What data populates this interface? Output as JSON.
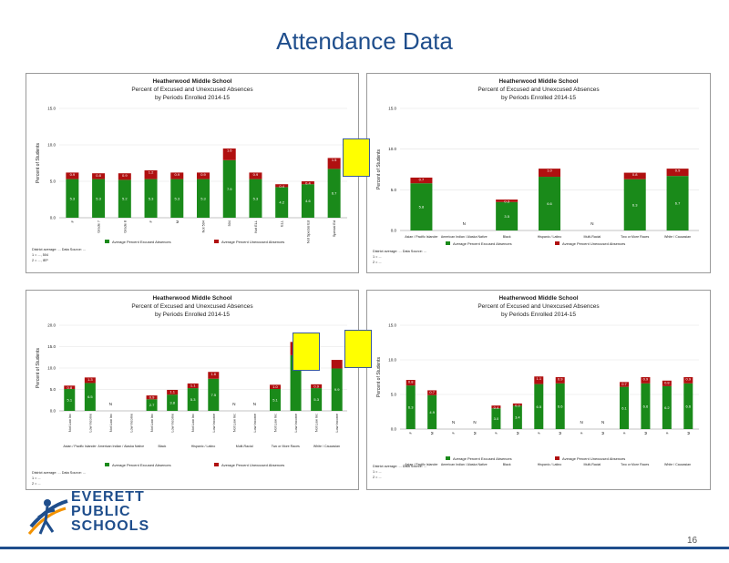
{
  "slide": {
    "title": "Attendance Data",
    "page_number": "16"
  },
  "logo": {
    "line1": "EVERETT",
    "line2": "PUBLIC",
    "line3": "SCHOOLS"
  },
  "colors": {
    "excused": "#1a8a1a",
    "unexcused": "#b01010",
    "title": "#1f4e8c"
  },
  "chart_data": [
    {
      "type": "bar",
      "stacked": true,
      "title": "Heatherwood Middle School",
      "subtitle": "Percent of Excused and Unexcused Absences",
      "subtitle2": "by Periods Enrolled 2014-15",
      "ylabel": "Percent of Students",
      "yticks": [
        "0.0",
        "5.0",
        "10.0",
        "15.0"
      ],
      "ylim": [
        0,
        15
      ],
      "groups": [
        [
          0,
          3
        ],
        [
          4,
          5
        ],
        [
          6,
          7
        ],
        [
          8,
          9
        ],
        [
          10,
          11
        ]
      ],
      "categories": [
        "F",
        "Grade 7",
        "Grade 8",
        "F",
        "M",
        "Not 504",
        "504",
        "Not ELL",
        "ELL",
        "Not Special Ed",
        "Special Ed"
      ],
      "series": [
        {
          "name": "Average Percent Excused Absences",
          "values": [
            5.3,
            5.3,
            5.2,
            5.3,
            5.3,
            5.3,
            7.9,
            5.3,
            4.2,
            4.6,
            6.7
          ]
        },
        {
          "name": "Average Percent Unexcused Absences",
          "values": [
            0.9,
            0.8,
            0.9,
            1.2,
            0.9,
            0.9,
            1.6,
            0.9,
            0.4,
            0.4,
            1.5
          ]
        }
      ],
      "excused_labels": [
        "5.3",
        "5.3",
        "5.2",
        "5.3",
        "5.3",
        "5.3",
        "7.9",
        "5.3",
        "4.2",
        "4.6",
        "6.7"
      ],
      "unexcused_labels": [
        "0.9",
        "0.8",
        "0.9",
        "1.2",
        "0.9",
        "0.9",
        "1.6",
        "0.9",
        "0.4",
        "0.4",
        "1.5"
      ],
      "legend": "bottom",
      "notes": [
        "District average: ... Data Source: ...",
        "1 = ..., 504",
        "2 = ..., IEP"
      ]
    },
    {
      "type": "bar",
      "stacked": true,
      "title": "Heatherwood Middle School",
      "subtitle": "Percent of Excused and Unexcused Absences",
      "subtitle2": "by Periods Enrolled 2014-15",
      "ylabel": "Percent of Students",
      "yticks": [
        "0.0",
        "5.0",
        "10.0",
        "15.0"
      ],
      "ylim": [
        0,
        15
      ],
      "categories": [
        "Asian / Pacific Islander",
        "American Indian / Alaska Native",
        "Black",
        "Hispanic / Latino",
        "Multi-Racial",
        "Two or More Races",
        "White / Caucasian"
      ],
      "series": [
        {
          "name": "Average Percent Excused Absences",
          "values": [
            5.8,
            null,
            3.5,
            6.6,
            null,
            6.3,
            6.7
          ]
        },
        {
          "name": "Average Percent Unexcused Absences",
          "values": [
            0.7,
            null,
            0.3,
            1.0,
            null,
            0.8,
            0.9
          ]
        }
      ],
      "excused_labels": [
        "5.8",
        "",
        "3.5",
        "6.6",
        "",
        "6.3",
        "6.7"
      ],
      "unexcused_labels": [
        "0.7",
        "N",
        "0.3",
        "1.0",
        "N",
        "0.8",
        "0.9"
      ],
      "legend": "bottom",
      "notes": [
        "District average: ... Data Source: ...",
        "1 = ...",
        "2 = ..."
      ]
    },
    {
      "type": "bar",
      "stacked": true,
      "title": "Heatherwood Middle School",
      "subtitle": "Percent of Excused and Unexcused Absences",
      "subtitle2": "by Periods Enrolled 2014-15",
      "ylabel": "Percent of Students",
      "yticks": [
        "0.0",
        "5.0",
        "10.0",
        "15.0",
        "20.0"
      ],
      "ylim": [
        0,
        20
      ],
      "groups": [
        [
          0,
          1
        ],
        [
          2,
          3
        ],
        [
          4,
          5
        ],
        [
          6,
          7
        ],
        [
          8,
          9
        ],
        [
          10,
          11
        ],
        [
          12,
          13
        ]
      ],
      "group_labels": [
        "Asian / Pacific Islander",
        "American Indian / Alaska Native",
        "Black",
        "Hispanic / Latino",
        "Multi-Racial",
        "Two or More Races",
        "White / Caucasian"
      ],
      "categories": [
        "Not Low Inc",
        "Low Income",
        "Not Low Inc",
        "Low Income",
        "Not Low Inc",
        "Low Income",
        "Not Low Inc",
        "Low Income",
        "Not Low Inc",
        "Low Income",
        "Not Low Inc",
        "Low Income",
        "Not Low Inc",
        "Low Income"
      ],
      "series": [
        {
          "name": "Average Percent Excused Absences",
          "values": [
            5.1,
            6.5,
            null,
            null,
            2.7,
            3.8,
            5.3,
            7.5,
            null,
            null,
            5.1,
            13.0,
            5.3,
            9.9
          ]
        },
        {
          "name": "Average Percent Unexcused Absences",
          "values": [
            0.8,
            1.3,
            null,
            null,
            0.9,
            1.1,
            1.1,
            1.6,
            null,
            null,
            1.0,
            3.1,
            0.9,
            2.0
          ]
        }
      ],
      "excused_labels": [
        "5.1",
        "6.5",
        "",
        "",
        "2.7",
        "3.8",
        "5.3",
        "7.5",
        "",
        "",
        "5.1",
        "",
        "5.3",
        "9.9"
      ],
      "unexcused_labels": [
        "0.8",
        "1.3",
        "N",
        "",
        "0.9",
        "1.1",
        "1.1",
        "1.6",
        "N",
        "N",
        "1.0",
        "",
        "0.9",
        ""
      ],
      "legend": "bottom",
      "notes": [
        "District average: ... Data Source: ...",
        "1 = ...",
        "2 = ..."
      ]
    },
    {
      "type": "bar",
      "stacked": true,
      "title": "Heatherwood Middle School",
      "subtitle": "Percent of Excused and Unexcused Absences",
      "subtitle2": "by Periods Enrolled 2014-15",
      "ylabel": "Percent of Students",
      "yticks": [
        "0.0",
        "5.0",
        "10.0",
        "15.0"
      ],
      "ylim": [
        0,
        15
      ],
      "groups": [
        [
          0,
          1
        ],
        [
          2,
          3
        ],
        [
          4,
          5
        ],
        [
          6,
          7
        ],
        [
          8,
          9
        ],
        [
          10,
          11
        ],
        [
          12,
          13
        ]
      ],
      "group_labels": [
        "Asian / Pacific Islander",
        "American Indian / Alaska Native",
        "Black",
        "Hispanic / Latino",
        "Multi-Racial",
        "Two or More Races",
        "White / Caucasian"
      ],
      "categories": [
        "F",
        "M",
        "F",
        "M",
        "F",
        "M",
        "F",
        "M",
        "F",
        "M",
        "F",
        "M",
        "F",
        "M"
      ],
      "series": [
        {
          "name": "Average Percent Excused Absences",
          "values": [
            6.3,
            4.9,
            null,
            null,
            3.0,
            3.4,
            6.5,
            6.6,
            null,
            null,
            6.1,
            6.6,
            6.2,
            6.6
          ]
        },
        {
          "name": "Average Percent Unexcused Absences",
          "values": [
            0.8,
            0.7,
            null,
            null,
            0.4,
            0.3,
            1.1,
            0.9,
            null,
            null,
            0.7,
            0.9,
            0.8,
            0.9
          ]
        }
      ],
      "excused_labels": [
        "6.3",
        "4.9",
        "",
        "",
        "3.0",
        "3.4",
        "6.5",
        "6.6",
        "",
        "",
        "6.1",
        "6.6",
        "6.2",
        "6.6"
      ],
      "unexcused_labels": [
        "0.8",
        "0.7",
        "N",
        "N",
        "0.4",
        "0.3",
        "1.1",
        "0.9",
        "N",
        "N",
        "0.7",
        "0.9",
        "0.8",
        "0.9"
      ],
      "legend": "bottom",
      "notes": [
        "District average: ... Data Source: ...",
        "1 = ...",
        "2 = ..."
      ]
    }
  ]
}
